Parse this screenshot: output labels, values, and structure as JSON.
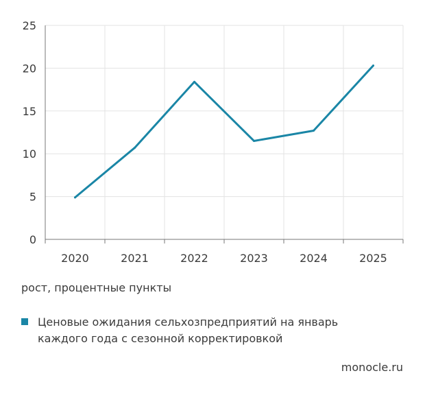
{
  "chart_data": {
    "type": "line",
    "x": [
      "2020",
      "2021",
      "2022",
      "2023",
      "2024",
      "2025"
    ],
    "series": [
      {
        "values": [
          4.9,
          10.7,
          18.4,
          11.5,
          12.7,
          20.3
        ],
        "color": "#1a86a6"
      }
    ],
    "ylim": [
      0,
      25
    ],
    "yticks": [
      0,
      5,
      10,
      15,
      20,
      25
    ],
    "grid": true,
    "grid_color": "#e3e3e3",
    "axis_color": "#777777"
  },
  "unit_note": "рост, процентные пункты",
  "legend": {
    "items": [
      {
        "label": "Ценовые ожидания сельхозпредприятий на январь каждого года с сезонной корректировкой",
        "color": "#1a86a6"
      }
    ]
  },
  "source": "monocle.ru"
}
